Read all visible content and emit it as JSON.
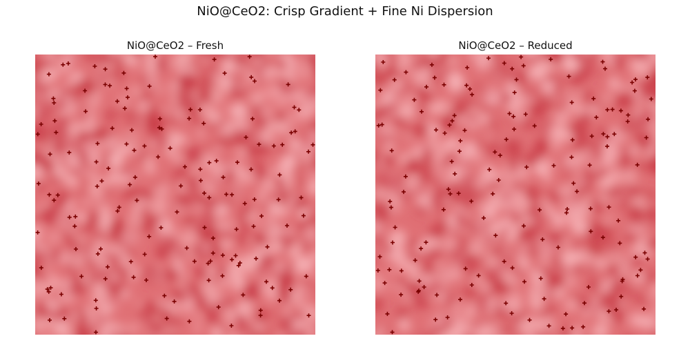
{
  "figure": {
    "title": "NiO@CeO2: Crisp Gradient + Fine Ni Dispersion"
  },
  "panels": [
    {
      "title": "NiO@CeO2 – Fresh",
      "seed": 17,
      "marker_count": 150
    },
    {
      "title": "NiO@CeO2 – Reduced",
      "seed": 53,
      "marker_count": 150
    }
  ],
  "colors": {
    "background_base": "#e07075",
    "dark_red": "#c83a45",
    "light_pink": "#f6b4b8",
    "marker": "#7a0000"
  },
  "marker_symbol": "plus"
}
